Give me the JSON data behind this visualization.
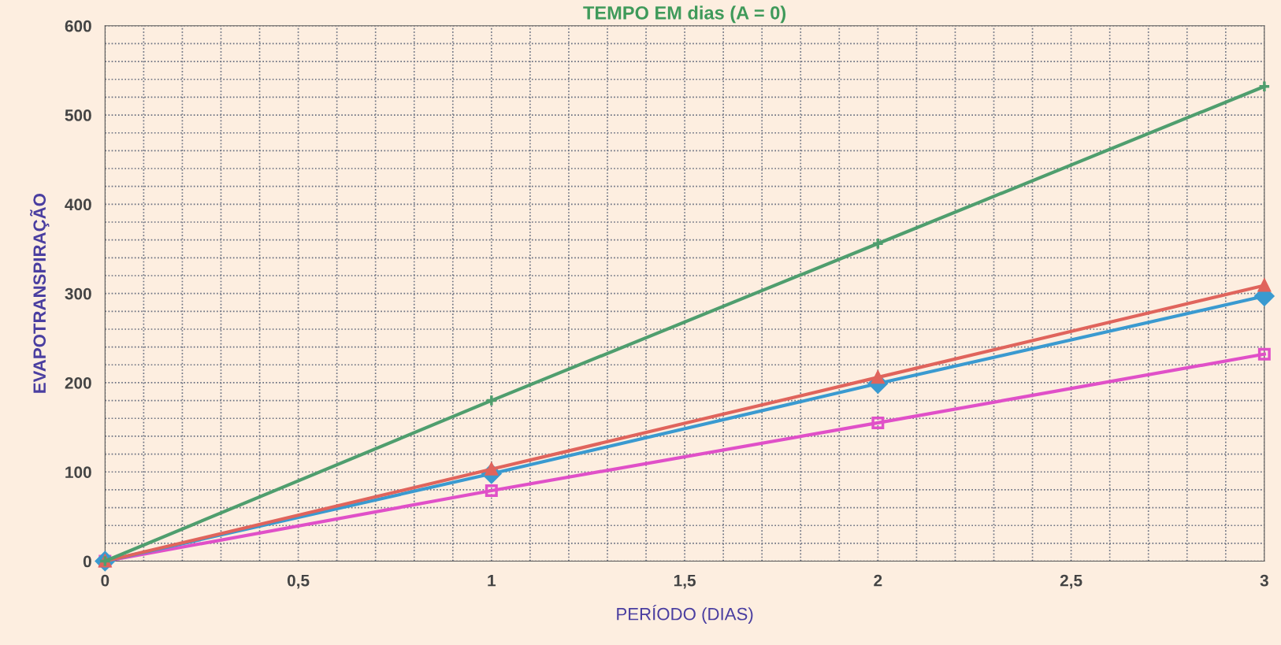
{
  "chart_data": {
    "type": "line",
    "title": "TEMPO EM dias (A = 0)",
    "xlabel": "PERÍODO (DIAS)",
    "ylabel": "EVAPOTRANSPIRAÇÃO",
    "x": [
      0,
      1,
      2,
      3
    ],
    "series": [
      {
        "color": "#4f9e6e",
        "marker": "cross",
        "values": [
          0,
          180,
          356,
          532
        ]
      },
      {
        "color": "#e0645c",
        "marker": "triangle",
        "values": [
          0,
          103,
          206,
          309
        ]
      },
      {
        "color": "#3a9ad0",
        "marker": "diamond",
        "values": [
          0,
          98,
          199,
          297
        ]
      },
      {
        "color": "#e050c8",
        "marker": "square",
        "values": [
          0,
          79,
          155,
          232
        ]
      }
    ],
    "xlim": [
      0,
      3
    ],
    "xticks": [
      0,
      {
        "value": 0.5,
        "label": "0,5"
      },
      1,
      {
        "value": 1.5,
        "label": "1,5"
      },
      2,
      {
        "value": 2.5,
        "label": "2,5"
      },
      3
    ],
    "ylim": [
      0,
      600
    ],
    "yticks": [
      0,
      100,
      200,
      300,
      400,
      500,
      600
    ],
    "grid": true,
    "line_style": "solid"
  }
}
